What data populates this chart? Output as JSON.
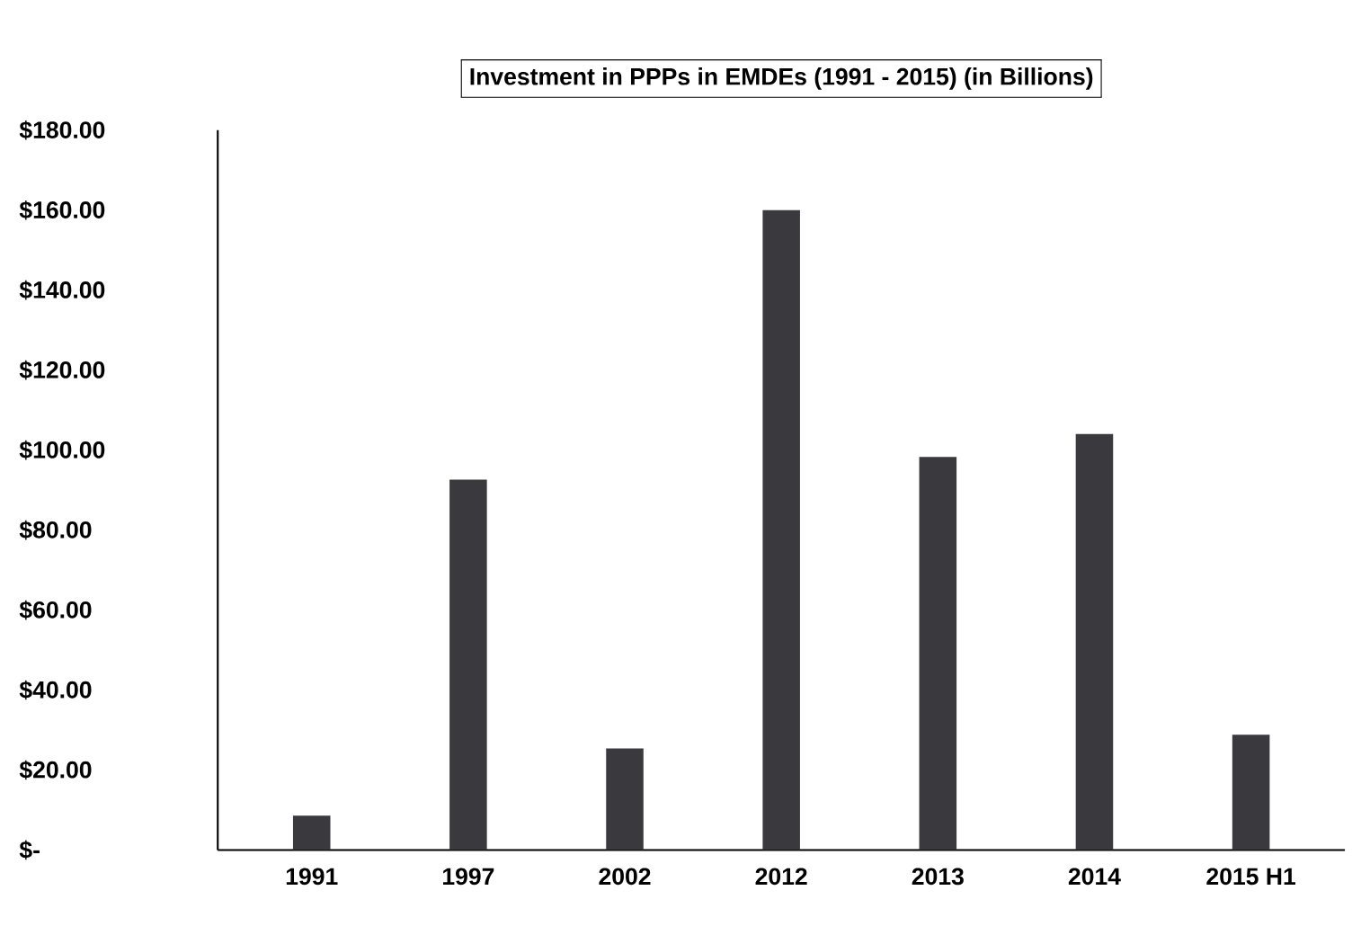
{
  "chart_data": {
    "type": "bar",
    "title": "Investment in PPPs in EMDEs (1991 - 2015) (in Billions)",
    "categories": [
      "1991",
      "1997",
      "2002",
      "2012",
      "2013",
      "2014",
      "2015 H1"
    ],
    "values": [
      8.6,
      92.6,
      25.4,
      160,
      98.3,
      104,
      28.8
    ],
    "color": "#3a3a3e",
    "ylim": [
      0,
      180
    ],
    "yticks": [
      {
        "value": 0,
        "label": "$-"
      },
      {
        "value": 20,
        "label": "$20.00"
      },
      {
        "value": 40,
        "label": "$40.00"
      },
      {
        "value": 60,
        "label": "$60.00"
      },
      {
        "value": 80,
        "label": "$80.00"
      },
      {
        "value": 100,
        "label": "$100.00"
      },
      {
        "value": 120,
        "label": "$120.00"
      },
      {
        "value": 140,
        "label": "$140.00"
      },
      {
        "value": 160,
        "label": "$160.00"
      },
      {
        "value": 180,
        "label": "$180.00"
      }
    ],
    "grid": false
  }
}
